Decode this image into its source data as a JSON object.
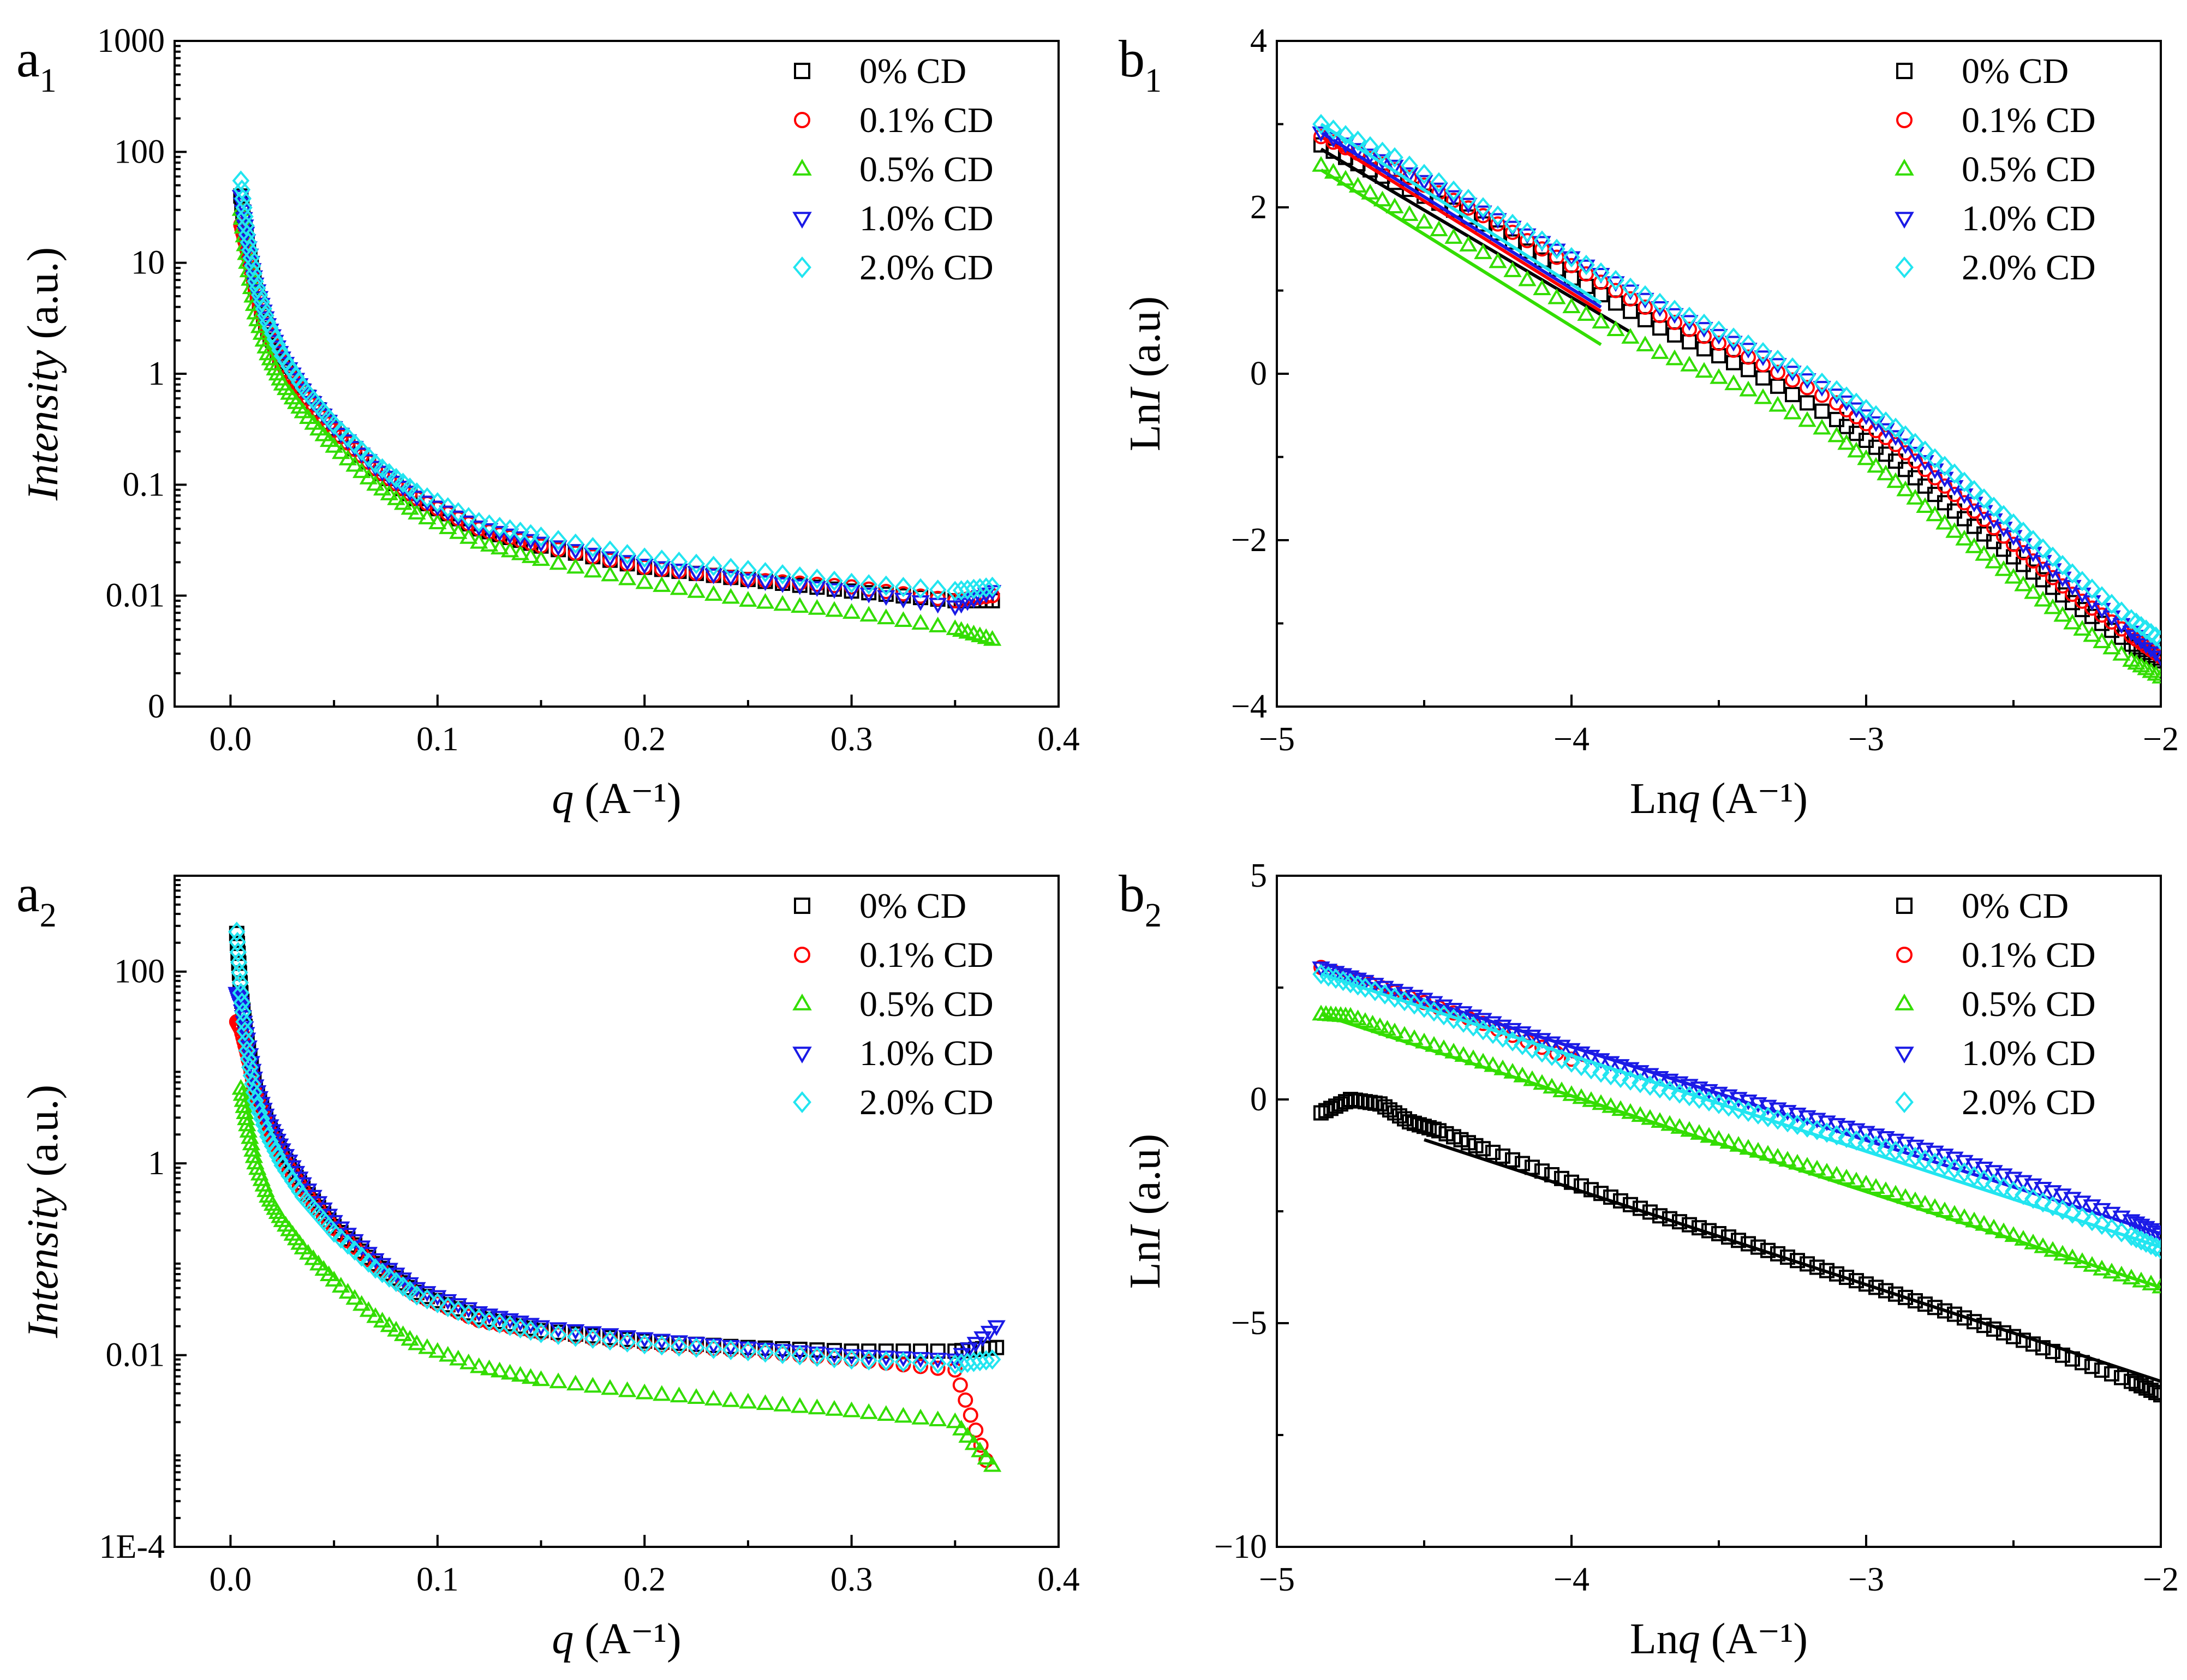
{
  "chart_data": [
    {
      "panel_label": "a1",
      "type": "scatter",
      "xlabel": "q (A⁻¹)",
      "ylabel": "Intensity (a.u.)",
      "xlim": [
        -0.027,
        0.4
      ],
      "yscale": "log",
      "ylim": [
        0.001,
        1000
      ],
      "xticks": [
        0.0,
        0.1,
        0.2,
        0.3,
        0.4
      ],
      "xtick_labels": [
        "0.0",
        "0.1",
        "0.2",
        "0.3",
        "0.4"
      ],
      "yticks": [
        0.001,
        0.01,
        0.1,
        1,
        10,
        100,
        1000
      ],
      "ytick_labels": [
        "0",
        "0.01",
        "0.1",
        "1",
        "10",
        "100",
        "1000"
      ],
      "legend_position": "top-right",
      "series": [
        {
          "name": "0% CD",
          "marker": "square",
          "color": "#000000",
          "x": [
            0.005,
            0.008,
            0.012,
            0.018,
            0.025,
            0.035,
            0.05,
            0.07,
            0.09,
            0.12,
            0.15,
            0.2,
            0.25,
            0.3,
            0.35,
            0.368
          ],
          "y": [
            40,
            15,
            6,
            2.5,
            1.3,
            0.7,
            0.32,
            0.14,
            0.075,
            0.04,
            0.028,
            0.018,
            0.014,
            0.011,
            0.009,
            0.009
          ]
        },
        {
          "name": "0.1% CD",
          "marker": "circle",
          "color": "#ff0000",
          "x": [
            0.005,
            0.008,
            0.012,
            0.018,
            0.025,
            0.035,
            0.05,
            0.07,
            0.09,
            0.12,
            0.15,
            0.2,
            0.25,
            0.3,
            0.35,
            0.368
          ],
          "y": [
            22,
            13,
            5.5,
            2.4,
            1.2,
            0.68,
            0.31,
            0.14,
            0.075,
            0.04,
            0.028,
            0.018,
            0.014,
            0.012,
            0.009,
            0.01
          ]
        },
        {
          "name": "0.5% CD",
          "marker": "triangle-up",
          "color": "#33dd00",
          "x": [
            0.005,
            0.008,
            0.012,
            0.018,
            0.025,
            0.035,
            0.05,
            0.07,
            0.09,
            0.12,
            0.15,
            0.2,
            0.25,
            0.3,
            0.35,
            0.368
          ],
          "y": [
            30,
            10,
            3.5,
            1.5,
            0.8,
            0.45,
            0.22,
            0.1,
            0.055,
            0.03,
            0.021,
            0.013,
            0.009,
            0.007,
            0.005,
            0.004
          ]
        },
        {
          "name": "1.0% CD",
          "marker": "triangle-down",
          "color": "#1a1ae6",
          "x": [
            0.005,
            0.008,
            0.012,
            0.018,
            0.025,
            0.035,
            0.05,
            0.07,
            0.09,
            0.12,
            0.15,
            0.2,
            0.25,
            0.3,
            0.35,
            0.368
          ],
          "y": [
            40,
            16,
            6.5,
            2.8,
            1.4,
            0.72,
            0.33,
            0.145,
            0.078,
            0.042,
            0.03,
            0.019,
            0.014,
            0.011,
            0.008,
            0.011
          ]
        },
        {
          "name": "2.0% CD",
          "marker": "diamond",
          "color": "#22e5f0",
          "x": [
            0.005,
            0.008,
            0.012,
            0.018,
            0.025,
            0.035,
            0.05,
            0.07,
            0.09,
            0.12,
            0.15,
            0.2,
            0.25,
            0.3,
            0.35,
            0.368
          ],
          "y": [
            55,
            18,
            6.8,
            2.9,
            1.45,
            0.75,
            0.35,
            0.155,
            0.085,
            0.046,
            0.034,
            0.022,
            0.017,
            0.013,
            0.011,
            0.012
          ]
        }
      ]
    },
    {
      "panel_label": "b1",
      "type": "scatter",
      "xlabel": "Lnq (A⁻¹)",
      "ylabel": "LnI (a.u)",
      "xlim": [
        -5,
        -2
      ],
      "ylim": [
        -4,
        4
      ],
      "xticks": [
        -5,
        -4,
        -3,
        -2
      ],
      "xtick_labels": [
        "−5",
        "−4",
        "−3",
        "−2"
      ],
      "yticks": [
        -4,
        -2,
        0,
        2,
        4
      ],
      "ytick_labels": [
        "−4",
        "−2",
        "0",
        "2",
        "4"
      ],
      "legend_position": "top-right",
      "series": [
        {
          "name": "0% CD",
          "marker": "square",
          "color": "#000000",
          "x": [
            -4.85,
            -4.6,
            -4.3,
            -4.0,
            -3.7,
            -3.4,
            -3.1,
            -2.9,
            -2.7,
            -2.5,
            -2.3,
            -2.1,
            -2.0
          ],
          "y": [
            2.75,
            2.3,
            1.8,
            1.15,
            0.55,
            0.05,
            -0.55,
            -1.05,
            -1.65,
            -2.2,
            -2.75,
            -3.25,
            -3.45
          ],
          "fit": {
            "x": [
              -4.85,
              -3.8
            ],
            "y": [
              2.7,
              0.5
            ]
          }
        },
        {
          "name": "0.1% CD",
          "marker": "circle",
          "color": "#ff0000",
          "x": [
            -4.85,
            -4.6,
            -4.3,
            -4.0,
            -3.7,
            -3.4,
            -3.1,
            -2.9,
            -2.7,
            -2.5,
            -2.3,
            -2.1,
            -2.0
          ],
          "y": [
            2.85,
            2.45,
            1.9,
            1.3,
            0.7,
            0.2,
            -0.35,
            -0.85,
            -1.45,
            -2.05,
            -2.65,
            -3.15,
            -3.4
          ],
          "fit": {
            "x": [
              -4.85,
              -3.9
            ],
            "y": [
              2.85,
              0.75
            ]
          }
        },
        {
          "name": "0.5% CD",
          "marker": "triangle-up",
          "color": "#33dd00",
          "x": [
            -4.85,
            -4.6,
            -4.3,
            -4.0,
            -3.7,
            -3.4,
            -3.1,
            -2.9,
            -2.7,
            -2.5,
            -2.3,
            -2.1,
            -2.0
          ],
          "y": [
            2.5,
            2.0,
            1.45,
            0.8,
            0.25,
            -0.2,
            -0.75,
            -1.3,
            -1.9,
            -2.45,
            -3.0,
            -3.45,
            -3.65
          ],
          "fit": {
            "x": [
              -4.85,
              -3.9
            ],
            "y": [
              2.45,
              0.35
            ]
          }
        },
        {
          "name": "1.0% CD",
          "marker": "triangle-down",
          "color": "#1a1ae6",
          "x": [
            -4.85,
            -4.6,
            -4.3,
            -4.0,
            -3.7,
            -3.4,
            -3.1,
            -2.9,
            -2.7,
            -2.5,
            -2.3,
            -2.1,
            -2.0
          ],
          "y": [
            2.9,
            2.5,
            1.95,
            1.4,
            0.8,
            0.3,
            -0.25,
            -0.75,
            -1.35,
            -1.95,
            -2.55,
            -3.1,
            -3.4
          ],
          "fit": {
            "x": [
              -4.85,
              -3.9
            ],
            "y": [
              2.9,
              0.8
            ]
          }
        },
        {
          "name": "2.0% CD",
          "marker": "diamond",
          "color": "#22e5f0",
          "x": [
            -4.85,
            -4.6,
            -4.3,
            -4.0,
            -3.7,
            -3.4,
            -3.1,
            -2.9,
            -2.7,
            -2.5,
            -2.3,
            -2.1,
            -2.0
          ],
          "y": [
            3.0,
            2.6,
            2.0,
            1.4,
            0.85,
            0.35,
            -0.2,
            -0.65,
            -1.2,
            -1.8,
            -2.4,
            -2.95,
            -3.2
          ],
          "fit": {
            "x": [
              -4.85,
              -3.9
            ],
            "y": [
              3.0,
              0.85
            ]
          }
        }
      ]
    },
    {
      "panel_label": "a2",
      "type": "scatter",
      "xlabel": "q (A⁻¹)",
      "ylabel": "Intensity (a.u.)",
      "xlim": [
        -0.027,
        0.4
      ],
      "yscale": "log",
      "ylim": [
        0.0001,
        1000
      ],
      "xticks": [
        0.0,
        0.1,
        0.2,
        0.3,
        0.4
      ],
      "xtick_labels": [
        "0.0",
        "0.1",
        "0.2",
        "0.3",
        "0.4"
      ],
      "yticks": [
        0.0001,
        0.01,
        1,
        100
      ],
      "ytick_labels": [
        "1E-4",
        "0.01",
        "1",
        "100"
      ],
      "legend_position": "top-right",
      "series": [
        {
          "name": "0% CD",
          "marker": "square",
          "color": "#000000",
          "x": [
            0.003,
            0.005,
            0.008,
            0.012,
            0.018,
            0.025,
            0.035,
            0.05,
            0.07,
            0.09,
            0.12,
            0.15,
            0.2,
            0.25,
            0.3,
            0.35,
            0.37
          ],
          "y": [
            250,
            60,
            18,
            6,
            2.5,
            1.2,
            0.55,
            0.22,
            0.09,
            0.045,
            0.025,
            0.018,
            0.014,
            0.012,
            0.011,
            0.011,
            0.012
          ]
        },
        {
          "name": "0.1% CD",
          "marker": "circle",
          "color": "#ff0000",
          "x": [
            0.003,
            0.005,
            0.008,
            0.012,
            0.018,
            0.025,
            0.035,
            0.05,
            0.07,
            0.09,
            0.12,
            0.15,
            0.2,
            0.25,
            0.3,
            0.35,
            0.365
          ],
          "y": [
            30,
            25,
            14,
            5.5,
            2.4,
            1.15,
            0.53,
            0.21,
            0.085,
            0.042,
            0.023,
            0.017,
            0.013,
            0.011,
            0.009,
            0.007,
            0.0008
          ]
        },
        {
          "name": "0.5% CD",
          "marker": "triangle-up",
          "color": "#33dd00",
          "x": [
            0.005,
            0.008,
            0.012,
            0.018,
            0.025,
            0.035,
            0.05,
            0.07,
            0.09,
            0.12,
            0.15,
            0.2,
            0.25,
            0.3,
            0.35,
            0.368
          ],
          "y": [
            6,
            2.5,
            1.0,
            0.45,
            0.25,
            0.13,
            0.06,
            0.025,
            0.013,
            0.0075,
            0.0055,
            0.004,
            0.0032,
            0.0026,
            0.002,
            0.0007
          ]
        },
        {
          "name": "1.0% CD",
          "marker": "triangle-down",
          "color": "#1a1ae6",
          "x": [
            0.003,
            0.005,
            0.008,
            0.012,
            0.018,
            0.025,
            0.035,
            0.05,
            0.07,
            0.09,
            0.12,
            0.15,
            0.2,
            0.25,
            0.3,
            0.35,
            0.37
          ],
          "y": [
            60,
            45,
            20,
            6.5,
            2.8,
            1.4,
            0.62,
            0.25,
            0.1,
            0.05,
            0.028,
            0.02,
            0.015,
            0.012,
            0.01,
            0.009,
            0.02
          ]
        },
        {
          "name": "2.0% CD",
          "marker": "diamond",
          "color": "#22e5f0",
          "x": [
            0.003,
            0.005,
            0.008,
            0.012,
            0.018,
            0.025,
            0.035,
            0.05,
            0.07,
            0.09,
            0.12,
            0.15,
            0.2,
            0.25,
            0.3,
            0.35,
            0.368
          ],
          "y": [
            260,
            60,
            15,
            4.5,
            1.9,
            0.95,
            0.45,
            0.19,
            0.08,
            0.042,
            0.024,
            0.017,
            0.013,
            0.011,
            0.009,
            0.008,
            0.009
          ]
        }
      ]
    },
    {
      "panel_label": "b2",
      "type": "scatter",
      "xlabel": "Lnq (A⁻¹)",
      "ylabel": "LnI (a.u)",
      "xlim": [
        -5,
        -2
      ],
      "ylim": [
        -10,
        5
      ],
      "xticks": [
        -5,
        -4,
        -3,
        -2
      ],
      "xtick_labels": [
        "−5",
        "−4",
        "−3",
        "−2"
      ],
      "yticks": [
        -10,
        -5,
        0,
        5
      ],
      "ytick_labels": [
        "−10",
        "−5",
        "0",
        "5"
      ],
      "legend_position": "top-right",
      "series": [
        {
          "name": "0% CD",
          "marker": "square",
          "color": "#000000",
          "x": [
            -4.85,
            -4.75,
            -4.65,
            -4.55,
            -4.45,
            -4.3,
            -4.1,
            -3.9,
            -3.7,
            -3.5,
            -3.3,
            -3.1,
            -2.9,
            -2.7,
            -2.5,
            -2.3,
            -2.1,
            -2.0
          ],
          "y": [
            -0.3,
            0.0,
            -0.1,
            -0.5,
            -0.7,
            -1.1,
            -1.6,
            -2.1,
            -2.6,
            -3.0,
            -3.45,
            -3.9,
            -4.35,
            -4.8,
            -5.3,
            -5.8,
            -6.3,
            -6.6
          ],
          "fit": {
            "x": [
              -4.5,
              -2.0
            ],
            "y": [
              -0.9,
              -6.3
            ]
          }
        },
        {
          "name": "0.1% CD",
          "marker": "circle",
          "color": "#ff0000",
          "x": [
            -4.85,
            -4.6,
            -4.3,
            -4.0
          ],
          "y": [
            2.95,
            2.4,
            1.7,
            0.9
          ],
          "fit": {
            "x": [
              -4.85,
              -3.95
            ],
            "y": [
              2.95,
              0.85
            ]
          }
        },
        {
          "name": "0.5% CD",
          "marker": "triangle-up",
          "color": "#33dd00",
          "x": [
            -4.85,
            -4.75,
            -4.6,
            -4.4,
            -4.2,
            -4.0,
            -3.8,
            -3.6,
            -3.4,
            -3.2,
            -3.0,
            -2.8,
            -2.6,
            -2.4,
            -2.2,
            -2.0
          ],
          "y": [
            1.9,
            1.85,
            1.5,
            1.05,
            0.6,
            0.1,
            -0.3,
            -0.7,
            -1.1,
            -1.5,
            -1.9,
            -2.35,
            -2.8,
            -3.3,
            -3.8,
            -4.2
          ],
          "fit": {
            "x": [
              -4.85,
              -2.0
            ],
            "y": [
              1.9,
              -4.2
            ]
          }
        },
        {
          "name": "1.0% CD",
          "marker": "triangle-down",
          "color": "#1a1ae6",
          "x": [
            -4.85,
            -4.7,
            -4.5,
            -4.3,
            -4.1,
            -3.9,
            -3.7,
            -3.5,
            -3.3,
            -3.1,
            -2.9,
            -2.7,
            -2.5,
            -2.3,
            -2.1,
            -2.0
          ],
          "y": [
            2.95,
            2.65,
            2.25,
            1.8,
            1.35,
            0.9,
            0.5,
            0.15,
            -0.2,
            -0.55,
            -0.9,
            -1.3,
            -1.75,
            -2.2,
            -2.7,
            -3.0
          ],
          "fit": {
            "x": [
              -4.85,
              -2.0
            ],
            "y": [
              2.95,
              -3.0
            ]
          }
        },
        {
          "name": "2.0% CD",
          "marker": "diamond",
          "color": "#22e5f0",
          "x": [
            -4.85,
            -4.7,
            -4.5,
            -4.3,
            -4.1,
            -3.9,
            -3.7,
            -3.5,
            -3.3,
            -3.1,
            -2.9,
            -2.7,
            -2.5,
            -2.3,
            -2.1,
            -2.0
          ],
          "y": [
            2.8,
            2.5,
            2.05,
            1.55,
            1.05,
            0.6,
            0.25,
            -0.1,
            -0.45,
            -0.8,
            -1.15,
            -1.55,
            -2.05,
            -2.55,
            -3.05,
            -3.35
          ],
          "fit": {
            "x": [
              -4.85,
              -2.0
            ],
            "y": [
              2.8,
              -3.3
            ]
          }
        }
      ]
    }
  ]
}
